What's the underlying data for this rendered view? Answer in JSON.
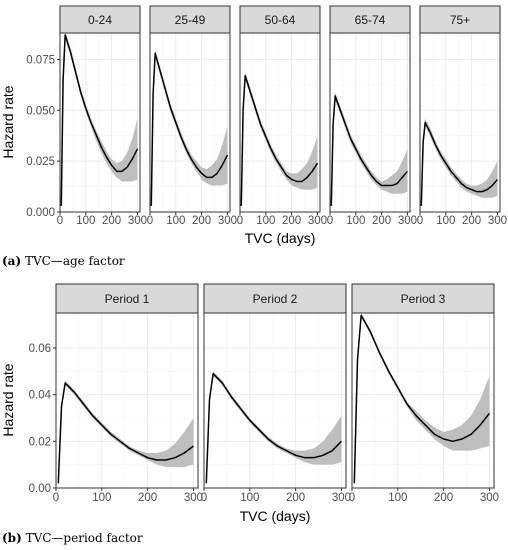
{
  "chart_data": [
    {
      "type": "line",
      "facet_by": "age group",
      "panels": [
        "0-24",
        "25-49",
        "50-64",
        "65-74",
        "75+"
      ],
      "xlabel": "TVC (days)",
      "ylabel": "Hazard rate",
      "xlim": [
        0,
        310
      ],
      "ylim": [
        0,
        0.088
      ],
      "xticks": [
        0,
        100,
        200,
        300
      ],
      "yticks": [
        0.0,
        0.025,
        0.05,
        0.075
      ],
      "ytick_labels": [
        "0.000",
        "0.025",
        "0.050",
        "0.075"
      ],
      "grid": true,
      "series": [
        {
          "name": "0-24",
          "x": [
            5,
            12,
            20,
            40,
            60,
            80,
            100,
            120,
            140,
            160,
            180,
            200,
            220,
            240,
            260,
            280,
            300
          ],
          "y": [
            0.003,
            0.065,
            0.087,
            0.079,
            0.069,
            0.059,
            0.051,
            0.044,
            0.038,
            0.032,
            0.027,
            0.023,
            0.02,
            0.02,
            0.022,
            0.026,
            0.031
          ],
          "lower": [
            0.003,
            0.063,
            0.085,
            0.077,
            0.067,
            0.057,
            0.049,
            0.042,
            0.035,
            0.029,
            0.024,
            0.02,
            0.017,
            0.015,
            0.015,
            0.015,
            0.016
          ],
          "upper": [
            0.003,
            0.067,
            0.089,
            0.081,
            0.071,
            0.061,
            0.053,
            0.046,
            0.04,
            0.035,
            0.03,
            0.026,
            0.024,
            0.025,
            0.029,
            0.036,
            0.046
          ]
        },
        {
          "name": "25-49",
          "x": [
            5,
            12,
            20,
            40,
            60,
            80,
            100,
            120,
            140,
            160,
            180,
            200,
            220,
            240,
            260,
            280,
            300
          ],
          "y": [
            0.003,
            0.058,
            0.078,
            0.069,
            0.06,
            0.051,
            0.044,
            0.037,
            0.031,
            0.026,
            0.022,
            0.019,
            0.017,
            0.017,
            0.019,
            0.023,
            0.028
          ],
          "lower": [
            0.003,
            0.056,
            0.076,
            0.067,
            0.058,
            0.049,
            0.042,
            0.035,
            0.029,
            0.024,
            0.02,
            0.016,
            0.014,
            0.013,
            0.013,
            0.013,
            0.014
          ],
          "upper": [
            0.003,
            0.06,
            0.08,
            0.071,
            0.062,
            0.053,
            0.046,
            0.039,
            0.033,
            0.028,
            0.025,
            0.022,
            0.021,
            0.023,
            0.026,
            0.033,
            0.042
          ]
        },
        {
          "name": "50-64",
          "x": [
            5,
            12,
            20,
            40,
            60,
            80,
            100,
            120,
            140,
            160,
            180,
            200,
            220,
            240,
            260,
            280,
            300
          ],
          "y": [
            0.003,
            0.05,
            0.067,
            0.059,
            0.051,
            0.043,
            0.037,
            0.031,
            0.026,
            0.022,
            0.018,
            0.016,
            0.015,
            0.015,
            0.017,
            0.02,
            0.024
          ],
          "lower": [
            0.003,
            0.048,
            0.065,
            0.057,
            0.049,
            0.041,
            0.035,
            0.029,
            0.024,
            0.02,
            0.016,
            0.013,
            0.012,
            0.011,
            0.011,
            0.011,
            0.012
          ],
          "upper": [
            0.003,
            0.052,
            0.069,
            0.061,
            0.053,
            0.045,
            0.039,
            0.033,
            0.028,
            0.024,
            0.02,
            0.019,
            0.019,
            0.021,
            0.024,
            0.03,
            0.037
          ]
        },
        {
          "name": "65-74",
          "x": [
            5,
            12,
            20,
            40,
            60,
            80,
            100,
            120,
            140,
            160,
            180,
            200,
            220,
            240,
            260,
            280,
            300
          ],
          "y": [
            0.003,
            0.043,
            0.057,
            0.05,
            0.043,
            0.036,
            0.031,
            0.026,
            0.022,
            0.018,
            0.015,
            0.013,
            0.013,
            0.013,
            0.014,
            0.017,
            0.02
          ],
          "lower": [
            0.003,
            0.041,
            0.055,
            0.048,
            0.041,
            0.034,
            0.029,
            0.024,
            0.02,
            0.016,
            0.013,
            0.011,
            0.01,
            0.009,
            0.009,
            0.009,
            0.01
          ],
          "upper": [
            0.003,
            0.045,
            0.059,
            0.052,
            0.045,
            0.038,
            0.033,
            0.028,
            0.024,
            0.02,
            0.017,
            0.015,
            0.016,
            0.018,
            0.02,
            0.025,
            0.031
          ]
        },
        {
          "name": "75+",
          "x": [
            5,
            12,
            20,
            40,
            60,
            80,
            100,
            120,
            140,
            160,
            180,
            200,
            220,
            240,
            260,
            280,
            300
          ],
          "y": [
            0.003,
            0.034,
            0.044,
            0.039,
            0.033,
            0.028,
            0.024,
            0.02,
            0.017,
            0.014,
            0.012,
            0.011,
            0.01,
            0.01,
            0.011,
            0.013,
            0.016
          ],
          "lower": [
            0.003,
            0.032,
            0.042,
            0.037,
            0.031,
            0.026,
            0.022,
            0.018,
            0.015,
            0.012,
            0.01,
            0.009,
            0.008,
            0.007,
            0.007,
            0.007,
            0.008
          ],
          "upper": [
            0.003,
            0.036,
            0.046,
            0.041,
            0.035,
            0.03,
            0.026,
            0.022,
            0.019,
            0.016,
            0.014,
            0.013,
            0.013,
            0.014,
            0.016,
            0.02,
            0.025
          ]
        }
      ]
    },
    {
      "type": "line",
      "facet_by": "period",
      "panels": [
        "Period 1",
        "Period 2",
        "Period 3"
      ],
      "xlabel": "TVC (days)",
      "ylabel": "Hazard rate",
      "xlim": [
        0,
        310
      ],
      "ylim": [
        0,
        0.075
      ],
      "xticks": [
        0,
        100,
        200,
        300
      ],
      "yticks": [
        0.0,
        0.02,
        0.04,
        0.06
      ],
      "ytick_labels": [
        "0.00",
        "0.02",
        "0.04",
        "0.06"
      ],
      "grid": true,
      "series": [
        {
          "name": "Period 1",
          "x": [
            5,
            12,
            20,
            40,
            60,
            80,
            100,
            120,
            140,
            160,
            180,
            200,
            220,
            240,
            260,
            280,
            300
          ],
          "y": [
            0.002,
            0.035,
            0.045,
            0.041,
            0.036,
            0.031,
            0.027,
            0.023,
            0.02,
            0.017,
            0.015,
            0.013,
            0.012,
            0.012,
            0.013,
            0.015,
            0.018
          ],
          "lower": [
            0.002,
            0.034,
            0.044,
            0.04,
            0.035,
            0.03,
            0.026,
            0.022,
            0.019,
            0.016,
            0.014,
            0.012,
            0.01,
            0.009,
            0.009,
            0.009,
            0.01
          ],
          "upper": [
            0.002,
            0.036,
            0.046,
            0.042,
            0.037,
            0.032,
            0.028,
            0.024,
            0.021,
            0.018,
            0.016,
            0.015,
            0.015,
            0.016,
            0.019,
            0.024,
            0.03
          ]
        },
        {
          "name": "Period 2",
          "x": [
            5,
            12,
            20,
            40,
            60,
            80,
            100,
            120,
            140,
            160,
            180,
            200,
            220,
            240,
            260,
            280,
            300
          ],
          "y": [
            0.002,
            0.038,
            0.049,
            0.045,
            0.039,
            0.034,
            0.029,
            0.025,
            0.021,
            0.018,
            0.016,
            0.014,
            0.013,
            0.013,
            0.014,
            0.016,
            0.02
          ],
          "lower": [
            0.002,
            0.037,
            0.048,
            0.044,
            0.038,
            0.033,
            0.028,
            0.024,
            0.02,
            0.017,
            0.015,
            0.013,
            0.011,
            0.01,
            0.01,
            0.01,
            0.011
          ],
          "upper": [
            0.002,
            0.039,
            0.05,
            0.046,
            0.04,
            0.035,
            0.03,
            0.026,
            0.022,
            0.019,
            0.017,
            0.016,
            0.016,
            0.017,
            0.02,
            0.025,
            0.031
          ]
        },
        {
          "name": "Period 3",
          "x": [
            5,
            12,
            20,
            40,
            60,
            80,
            100,
            120,
            140,
            160,
            180,
            200,
            220,
            240,
            260,
            280,
            300
          ],
          "y": [
            0.002,
            0.055,
            0.074,
            0.067,
            0.058,
            0.05,
            0.043,
            0.036,
            0.031,
            0.027,
            0.023,
            0.021,
            0.02,
            0.021,
            0.023,
            0.027,
            0.032
          ],
          "lower": [
            0.002,
            0.054,
            0.073,
            0.066,
            0.057,
            0.049,
            0.042,
            0.035,
            0.029,
            0.025,
            0.021,
            0.018,
            0.016,
            0.016,
            0.016,
            0.017,
            0.018
          ],
          "upper": [
            0.002,
            0.056,
            0.075,
            0.068,
            0.059,
            0.051,
            0.044,
            0.037,
            0.033,
            0.029,
            0.026,
            0.024,
            0.025,
            0.027,
            0.031,
            0.038,
            0.048
          ]
        }
      ]
    }
  ],
  "captions": {
    "a": {
      "label": "(a)",
      "text": "TVC—age factor"
    },
    "b": {
      "label": "(b)",
      "text": "TVC—period factor"
    }
  },
  "colors": {
    "strip": "#d9d9d9",
    "band": "#bebebe",
    "line": "#000000",
    "grid": "#ebebeb",
    "border": "#333333"
  }
}
